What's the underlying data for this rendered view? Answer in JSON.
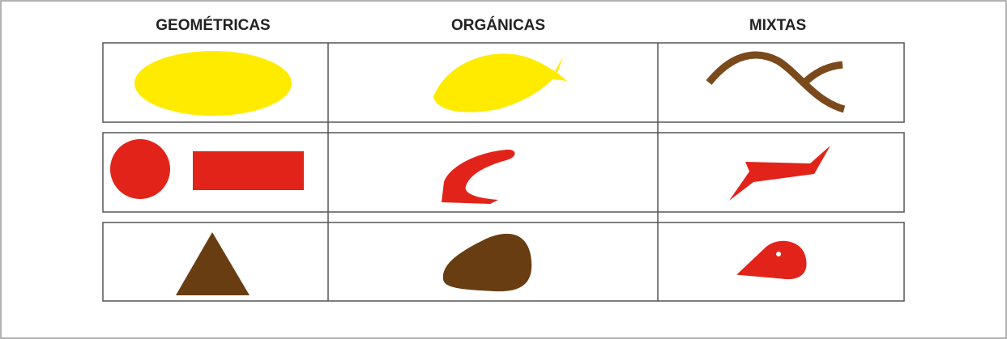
{
  "columns": [
    "GEOMÉTRICAS",
    "ORGÁNICAS",
    "MIXTAS"
  ]
}
